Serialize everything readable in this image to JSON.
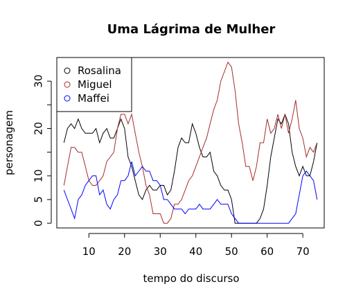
{
  "chart_data": {
    "type": "line",
    "title": "Uma Lágrima de Mulher",
    "xlabel": "tempo do discurso",
    "ylabel": "personagem",
    "xlim": [
      1,
      76
    ],
    "ylim": [
      -1,
      35
    ],
    "xticks": [
      10,
      20,
      30,
      40,
      50,
      60,
      70
    ],
    "yticks": [
      0,
      5,
      10,
      20,
      30
    ],
    "legend_position": "top-left",
    "legend_marker": "circle",
    "x": [
      3,
      4,
      5,
      6,
      7,
      8,
      9,
      10,
      11,
      12,
      13,
      14,
      15,
      16,
      17,
      18,
      19,
      20,
      21,
      22,
      23,
      24,
      25,
      26,
      27,
      28,
      29,
      30,
      31,
      32,
      33,
      34,
      35,
      36,
      37,
      38,
      39,
      40,
      41,
      42,
      43,
      44,
      45,
      46,
      47,
      48,
      49,
      50,
      51,
      52,
      53,
      54,
      55,
      56,
      57,
      58,
      59,
      60,
      61,
      62,
      63,
      64,
      65,
      66,
      67,
      68,
      69,
      70,
      71,
      72,
      73,
      74
    ],
    "series": [
      {
        "name": "Rosalina",
        "color": "#000000",
        "values": [
          17,
          20,
          21,
          20,
          22,
          20,
          19,
          19,
          19,
          20,
          17,
          19,
          20,
          18,
          18,
          20,
          22,
          20,
          14,
          12,
          9,
          6,
          5,
          7,
          8,
          7,
          7,
          8,
          8,
          6,
          7,
          11,
          16,
          18,
          17,
          17,
          21,
          19,
          16,
          14,
          14,
          15,
          11,
          10,
          8,
          7,
          7,
          5,
          0,
          0,
          0,
          0,
          0,
          0,
          0,
          1,
          3,
          8,
          14,
          18,
          22,
          21,
          23,
          21,
          15,
          12,
          10,
          12,
          10,
          10,
          13,
          17
        ]
      },
      {
        "name": "Miguel",
        "color": "#a52a2a",
        "values": [
          8,
          12,
          16,
          16,
          15,
          15,
          12,
          9,
          8,
          8,
          9,
          10,
          13,
          14,
          15,
          20,
          23,
          23,
          21,
          23,
          19,
          15,
          12,
          8,
          6,
          2,
          2,
          2,
          0,
          0,
          1,
          4,
          4,
          5,
          7,
          9,
          10,
          12,
          14,
          16,
          18,
          21,
          24,
          26,
          30,
          32,
          34,
          33,
          28,
          21,
          17,
          12,
          12,
          9,
          12,
          17,
          17,
          22,
          19,
          20,
          23,
          20,
          23,
          19,
          22,
          26,
          20,
          18,
          14,
          16,
          15,
          17
        ]
      },
      {
        "name": "Maffei",
        "color": "#0000ff",
        "values": [
          7,
          5,
          3,
          1,
          5,
          6,
          8,
          9,
          10,
          10,
          6,
          7,
          4,
          3,
          5,
          6,
          9,
          9,
          10,
          13,
          10,
          11,
          12,
          11,
          11,
          9,
          9,
          8,
          5,
          5,
          4,
          3,
          3,
          3,
          2,
          3,
          3,
          3,
          4,
          3,
          3,
          3,
          4,
          5,
          4,
          4,
          4,
          2,
          1,
          0,
          0,
          0,
          0,
          0,
          0,
          0,
          0,
          0,
          0,
          0,
          0,
          0,
          0,
          0,
          1,
          2,
          6,
          10,
          11,
          10,
          9,
          5
        ]
      }
    ]
  }
}
